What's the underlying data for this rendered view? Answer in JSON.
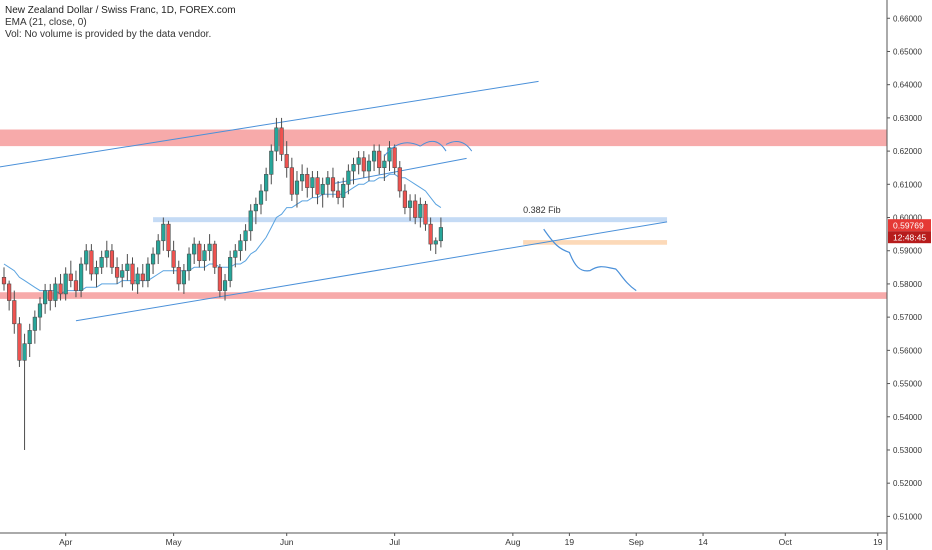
{
  "legend": {
    "title": "New Zealand Dollar / Swiss Franc, 1D, FOREX.com",
    "indicator": "EMA (21, close, 0)",
    "volume_note": "Vol: No volume is provided by the data vendor."
  },
  "colors": {
    "up": "#26a69a",
    "down": "#ef5350",
    "body": "#4d4d4d",
    "ema": "#5aa3e0",
    "trendline": "#4a90d9",
    "resistance_zone": "#f7aaaa",
    "support_zone": "#c5dbf5",
    "target_zone": "#fcd9b8",
    "price_tag": "#e53935"
  },
  "chart_data": {
    "type": "candlestick",
    "symbol": "NZDCHF",
    "ylim": [
      0.505,
      0.6655
    ],
    "y_ticks": [
      "0.66000",
      "0.65000",
      "0.64000",
      "0.63000",
      "0.62000",
      "0.61000",
      "0.60000",
      "0.59000",
      "0.58000",
      "0.57000",
      "0.56000",
      "0.55000",
      "0.54000",
      "0.53000",
      "0.52000",
      "0.51000"
    ],
    "x_ticks": [
      {
        "label": "Apr",
        "index": 12
      },
      {
        "label": "May",
        "index": 33
      },
      {
        "label": "Jun",
        "index": 55
      },
      {
        "label": "Jul",
        "index": 76
      },
      {
        "label": "Aug",
        "index": 99
      },
      {
        "label": "19",
        "index": 110
      },
      {
        "label": "Sep",
        "index": 123
      },
      {
        "label": "14",
        "index": 136
      },
      {
        "label": "Oct",
        "index": 152
      },
      {
        "label": "19",
        "index": 170
      }
    ],
    "candles": [
      [
        0.582,
        0.585,
        0.578,
        0.58
      ],
      [
        0.58,
        0.581,
        0.572,
        0.575
      ],
      [
        0.575,
        0.578,
        0.565,
        0.568
      ],
      [
        0.568,
        0.57,
        0.555,
        0.557
      ],
      [
        0.557,
        0.565,
        0.53,
        0.562
      ],
      [
        0.562,
        0.568,
        0.558,
        0.566
      ],
      [
        0.566,
        0.572,
        0.562,
        0.57
      ],
      [
        0.57,
        0.576,
        0.566,
        0.574
      ],
      [
        0.574,
        0.58,
        0.571,
        0.578
      ],
      [
        0.578,
        0.58,
        0.572,
        0.575
      ],
      [
        0.575,
        0.582,
        0.573,
        0.58
      ],
      [
        0.58,
        0.583,
        0.575,
        0.577
      ],
      [
        0.577,
        0.585,
        0.575,
        0.583
      ],
      [
        0.583,
        0.587,
        0.579,
        0.581
      ],
      [
        0.581,
        0.584,
        0.576,
        0.578
      ],
      [
        0.578,
        0.588,
        0.576,
        0.586
      ],
      [
        0.586,
        0.592,
        0.584,
        0.59
      ],
      [
        0.59,
        0.592,
        0.581,
        0.583
      ],
      [
        0.583,
        0.587,
        0.579,
        0.585
      ],
      [
        0.585,
        0.59,
        0.583,
        0.588
      ],
      [
        0.588,
        0.593,
        0.585,
        0.59
      ],
      [
        0.59,
        0.592,
        0.583,
        0.585
      ],
      [
        0.585,
        0.588,
        0.58,
        0.582
      ],
      [
        0.582,
        0.586,
        0.579,
        0.584
      ],
      [
        0.584,
        0.589,
        0.581,
        0.586
      ],
      [
        0.586,
        0.588,
        0.578,
        0.58
      ],
      [
        0.58,
        0.585,
        0.577,
        0.583
      ],
      [
        0.583,
        0.586,
        0.579,
        0.581
      ],
      [
        0.581,
        0.588,
        0.579,
        0.586
      ],
      [
        0.586,
        0.591,
        0.583,
        0.589
      ],
      [
        0.589,
        0.595,
        0.586,
        0.593
      ],
      [
        0.593,
        0.6,
        0.59,
        0.598
      ],
      [
        0.598,
        0.599,
        0.588,
        0.59
      ],
      [
        0.59,
        0.593,
        0.583,
        0.585
      ],
      [
        0.585,
        0.587,
        0.578,
        0.58
      ],
      [
        0.58,
        0.586,
        0.577,
        0.584
      ],
      [
        0.584,
        0.591,
        0.581,
        0.589
      ],
      [
        0.589,
        0.594,
        0.586,
        0.592
      ],
      [
        0.592,
        0.593,
        0.585,
        0.587
      ],
      [
        0.587,
        0.592,
        0.584,
        0.59
      ],
      [
        0.59,
        0.595,
        0.587,
        0.592
      ],
      [
        0.592,
        0.593,
        0.583,
        0.585
      ],
      [
        0.585,
        0.586,
        0.576,
        0.578
      ],
      [
        0.578,
        0.583,
        0.575,
        0.581
      ],
      [
        0.581,
        0.59,
        0.579,
        0.588
      ],
      [
        0.588,
        0.592,
        0.585,
        0.59
      ],
      [
        0.59,
        0.595,
        0.587,
        0.593
      ],
      [
        0.593,
        0.598,
        0.59,
        0.596
      ],
      [
        0.596,
        0.604,
        0.593,
        0.602
      ],
      [
        0.602,
        0.606,
        0.598,
        0.604
      ],
      [
        0.604,
        0.61,
        0.601,
        0.608
      ],
      [
        0.608,
        0.615,
        0.605,
        0.613
      ],
      [
        0.613,
        0.622,
        0.61,
        0.62
      ],
      [
        0.62,
        0.63,
        0.617,
        0.627
      ],
      [
        0.627,
        0.63,
        0.617,
        0.619
      ],
      [
        0.619,
        0.623,
        0.612,
        0.615
      ],
      [
        0.615,
        0.618,
        0.605,
        0.607
      ],
      [
        0.607,
        0.614,
        0.603,
        0.611
      ],
      [
        0.611,
        0.616,
        0.608,
        0.613
      ],
      [
        0.613,
        0.615,
        0.606,
        0.609
      ],
      [
        0.609,
        0.614,
        0.606,
        0.612
      ],
      [
        0.612,
        0.614,
        0.604,
        0.607
      ],
      [
        0.607,
        0.612,
        0.603,
        0.61
      ],
      [
        0.61,
        0.614,
        0.606,
        0.612
      ],
      [
        0.612,
        0.615,
        0.606,
        0.608
      ],
      [
        0.608,
        0.611,
        0.604,
        0.606
      ],
      [
        0.606,
        0.612,
        0.603,
        0.61
      ],
      [
        0.61,
        0.616,
        0.607,
        0.614
      ],
      [
        0.614,
        0.618,
        0.61,
        0.616
      ],
      [
        0.616,
        0.62,
        0.613,
        0.618
      ],
      [
        0.618,
        0.62,
        0.612,
        0.614
      ],
      [
        0.614,
        0.619,
        0.611,
        0.617
      ],
      [
        0.617,
        0.622,
        0.614,
        0.62
      ],
      [
        0.62,
        0.622,
        0.613,
        0.615
      ],
      [
        0.615,
        0.619,
        0.611,
        0.617
      ],
      [
        0.617,
        0.623,
        0.614,
        0.621
      ],
      [
        0.621,
        0.622,
        0.613,
        0.615
      ],
      [
        0.615,
        0.617,
        0.606,
        0.608
      ],
      [
        0.608,
        0.61,
        0.601,
        0.603
      ],
      [
        0.603,
        0.607,
        0.599,
        0.605
      ],
      [
        0.605,
        0.607,
        0.598,
        0.6
      ],
      [
        0.6,
        0.606,
        0.597,
        0.604
      ],
      [
        0.604,
        0.605,
        0.596,
        0.598
      ],
      [
        0.598,
        0.6,
        0.59,
        0.592
      ],
      [
        0.592,
        0.594,
        0.589,
        0.593
      ],
      [
        0.593,
        0.6,
        0.591,
        0.597
      ]
    ],
    "ema": [
      0.586,
      0.585,
      0.584,
      0.582,
      0.581,
      0.58,
      0.579,
      0.578,
      0.578,
      0.578,
      0.578,
      0.577,
      0.578,
      0.578,
      0.578,
      0.578,
      0.579,
      0.579,
      0.579,
      0.58,
      0.58,
      0.58,
      0.58,
      0.581,
      0.581,
      0.581,
      0.581,
      0.581,
      0.581,
      0.582,
      0.583,
      0.584,
      0.584,
      0.584,
      0.584,
      0.584,
      0.584,
      0.585,
      0.585,
      0.585,
      0.586,
      0.586,
      0.585,
      0.585,
      0.585,
      0.586,
      0.586,
      0.587,
      0.589,
      0.59,
      0.592,
      0.594,
      0.597,
      0.6,
      0.601,
      0.603,
      0.603,
      0.604,
      0.605,
      0.605,
      0.606,
      0.606,
      0.607,
      0.607,
      0.607,
      0.607,
      0.607,
      0.608,
      0.609,
      0.61,
      0.61,
      0.611,
      0.611,
      0.612,
      0.612,
      0.613,
      0.613,
      0.612,
      0.612,
      0.611,
      0.61,
      0.609,
      0.608,
      0.606,
      0.604,
      0.603
    ],
    "last_price": "0.59769",
    "countdown": "12:48:45",
    "annotation": "0.382 Fib"
  }
}
